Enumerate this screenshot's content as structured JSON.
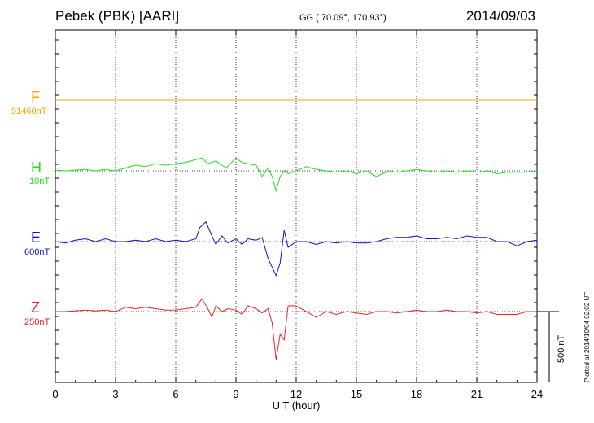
{
  "header": {
    "title": "Pebek (PBK)  [AARI]",
    "coords": "GG ( 70.09°, 170.93°)",
    "date": "2014/09/03"
  },
  "plotted_note": "Plotted at 2014/10/04 02:02 UT",
  "scale_bar_label": "500 nT",
  "chart_data": {
    "type": "line",
    "xlabel": "U T (hour)",
    "xlim": [
      0,
      24
    ],
    "xticks": [
      0,
      3,
      6,
      9,
      12,
      15,
      18,
      21,
      24
    ],
    "grid": true,
    "scale_nT": 500,
    "series": [
      {
        "name": "F",
        "baseline": "91460nT",
        "color": "#f5a400",
        "x": [
          0,
          24
        ],
        "y": [
          0,
          0
        ]
      },
      {
        "name": "H",
        "baseline": "10nT",
        "color": "#22dd22",
        "x": [
          0,
          0.5,
          1,
          1.5,
          2,
          2.5,
          3,
          3.5,
          4,
          4.5,
          5,
          5.5,
          6,
          6.5,
          7,
          7.3,
          7.6,
          8,
          8.5,
          9,
          9.3,
          9.6,
          10,
          10.3,
          10.6,
          10.8,
          11,
          11.2,
          11.4,
          11.6,
          12,
          12.5,
          13,
          13.5,
          14,
          14.5,
          15,
          15.5,
          16,
          16.3,
          16.6,
          17,
          17.5,
          18,
          18.5,
          19,
          19.5,
          20,
          20.5,
          21,
          21.5,
          22,
          22.5,
          23,
          23.5,
          24
        ],
        "y": [
          5,
          0,
          5,
          10,
          0,
          10,
          0,
          20,
          40,
          30,
          50,
          40,
          50,
          60,
          80,
          90,
          50,
          70,
          20,
          90,
          60,
          50,
          40,
          -40,
          20,
          -40,
          -140,
          -40,
          0,
          -20,
          0,
          30,
          10,
          0,
          -10,
          0,
          -20,
          0,
          -40,
          -20,
          0,
          -10,
          0,
          10,
          0,
          -10,
          0,
          -10,
          0,
          -10,
          0,
          -20,
          -10,
          -10,
          -10,
          0
        ]
      },
      {
        "name": "E",
        "baseline": "600nT",
        "color": "#1111cc",
        "x": [
          0,
          0.5,
          1,
          1.5,
          2,
          2.5,
          3,
          3.5,
          4,
          4.5,
          5,
          5.5,
          6,
          6.5,
          7,
          7.2,
          7.5,
          7.8,
          8,
          8.3,
          8.6,
          9,
          9.3,
          9.6,
          10,
          10.3,
          10.6,
          10.8,
          11,
          11.2,
          11.4,
          11.6,
          12,
          12.5,
          13,
          13.5,
          14,
          14.5,
          15,
          15.5,
          16,
          16.5,
          17,
          17.5,
          18,
          18.5,
          19,
          19.5,
          20,
          20.5,
          21,
          21.5,
          22,
          22.5,
          23,
          23.5,
          24
        ],
        "y": [
          0,
          -10,
          10,
          20,
          0,
          20,
          0,
          0,
          10,
          0,
          20,
          0,
          10,
          0,
          20,
          100,
          140,
          40,
          -20,
          40,
          -10,
          20,
          -20,
          20,
          10,
          30,
          -120,
          -180,
          -240,
          -150,
          80,
          -40,
          0,
          0,
          -20,
          0,
          -10,
          0,
          -10,
          -10,
          0,
          20,
          30,
          30,
          40,
          20,
          20,
          30,
          20,
          40,
          30,
          30,
          0,
          0,
          -30,
          0,
          10
        ]
      },
      {
        "name": "Z",
        "baseline": "250nT",
        "color": "#ee2222",
        "x": [
          0,
          0.5,
          1,
          1.5,
          2,
          2.5,
          3,
          3.5,
          4,
          4.5,
          5,
          5.5,
          6,
          6.5,
          7,
          7.3,
          7.6,
          7.8,
          8,
          8.3,
          8.6,
          9,
          9.3,
          9.6,
          10,
          10.3,
          10.6,
          10.8,
          11,
          11.2,
          11.4,
          11.6,
          12,
          12.5,
          13,
          13.5,
          14,
          14.5,
          15,
          15.5,
          16,
          16.5,
          17,
          17.5,
          18,
          18.5,
          19,
          19.5,
          20,
          20.5,
          21,
          21.5,
          22,
          22.5,
          23,
          23.5,
          24
        ],
        "y": [
          0,
          0,
          5,
          10,
          5,
          10,
          0,
          30,
          20,
          30,
          20,
          10,
          10,
          20,
          30,
          90,
          20,
          -40,
          40,
          0,
          20,
          10,
          -20,
          40,
          20,
          -10,
          20,
          -80,
          -340,
          -160,
          -200,
          40,
          40,
          0,
          -40,
          0,
          -20,
          0,
          -10,
          -20,
          0,
          0,
          -10,
          0,
          10,
          0,
          0,
          10,
          0,
          0,
          -10,
          0,
          -20,
          -20,
          -20,
          0,
          0
        ]
      }
    ]
  }
}
